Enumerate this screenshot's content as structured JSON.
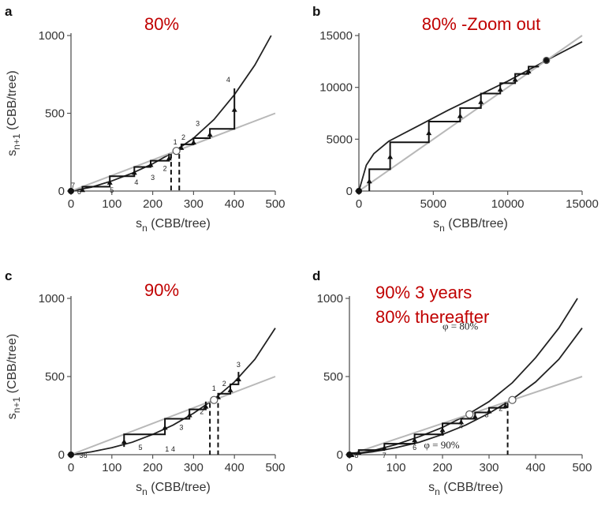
{
  "chart_data": [
    {
      "panel": "a",
      "note_lines": [
        "80%"
      ],
      "type": "line",
      "xlabel": "s_n (CBB/tree)",
      "ylabel": "s_{n+1} (CBB/tree)",
      "xlim": [
        0,
        500
      ],
      "ylim": [
        0,
        1000
      ],
      "xticks": [
        "0",
        "100",
        "200",
        "300",
        "400",
        "500"
      ],
      "yticks": [
        "0",
        "500",
        "1000"
      ],
      "series": [
        {
          "x": [
            0,
            50,
            100,
            150,
            200,
            250,
            300,
            350,
            400,
            450,
            490
          ],
          "values": [
            0,
            25,
            65,
            115,
            175,
            250,
            340,
            460,
            620,
            810,
            1000
          ]
        },
        {
          "x": [
            0,
            500
          ],
          "values": [
            0,
            500
          ]
        }
      ],
      "cobweb": [
        [
          28,
          0
        ],
        [
          28,
          28
        ],
        [
          95,
          28
        ],
        [
          95,
          95
        ],
        [
          155,
          95
        ],
        [
          155,
          155
        ],
        [
          195,
          155
        ],
        [
          195,
          195
        ],
        [
          240,
          195
        ],
        [
          240,
          240
        ]
      ],
      "cobweb_upper": [
        [
          270,
          270
        ],
        [
          270,
          300
        ],
        [
          300,
          300
        ],
        [
          300,
          340
        ],
        [
          340,
          340
        ],
        [
          340,
          400
        ],
        [
          400,
          400
        ],
        [
          400,
          660
        ]
      ],
      "dashed_x": [
        245,
        265
      ],
      "fixed_point": [
        258,
        258
      ],
      "step_labels": [
        {
          "text": "7",
          "x": 5,
          "y": 20
        },
        {
          "text": "6",
          "x": 20,
          "y": -20
        },
        {
          "text": "5",
          "x": 100,
          "y": -10
        },
        {
          "text": "4",
          "x": 160,
          "y": 40
        },
        {
          "text": "3",
          "x": 200,
          "y": 70
        },
        {
          "text": "2",
          "x": 230,
          "y": 130
        },
        {
          "text": "1",
          "x": 255,
          "y": 300
        },
        {
          "text": "2",
          "x": 275,
          "y": 330
        },
        {
          "text": "3",
          "x": 310,
          "y": 420
        },
        {
          "text": "4",
          "x": 385,
          "y": 700
        }
      ]
    },
    {
      "panel": "b",
      "note_lines": [
        "80% -Zoom out"
      ],
      "type": "line",
      "xlabel": "s_n (CBB/tree)",
      "ylabel": "",
      "xlim": [
        0,
        15000
      ],
      "ylim": [
        0,
        15000
      ],
      "xticks": [
        "0",
        "5000",
        "10000",
        "15000"
      ],
      "yticks": [
        "0",
        "5000",
        "10000",
        "15000"
      ],
      "series": [
        {
          "x": [
            0,
            500,
            1000,
            2000,
            4000,
            6000,
            8000,
            10000,
            12600,
            15000
          ],
          "values": [
            0,
            2500,
            3600,
            4800,
            6300,
            7800,
            9200,
            10600,
            12600,
            14400
          ]
        },
        {
          "x": [
            0,
            15000
          ],
          "values": [
            0,
            15000
          ]
        }
      ],
      "cobweb": [
        [
          700,
          0
        ],
        [
          700,
          2100
        ],
        [
          2100,
          2100
        ],
        [
          2100,
          4700
        ],
        [
          4700,
          4700
        ],
        [
          4700,
          6700
        ],
        [
          6800,
          6700
        ],
        [
          6800,
          8000
        ],
        [
          8200,
          8000
        ],
        [
          8200,
          9400
        ],
        [
          9500,
          9400
        ],
        [
          9500,
          10400
        ],
        [
          10500,
          10400
        ],
        [
          10500,
          11300
        ],
        [
          11400,
          11300
        ],
        [
          11400,
          12000
        ],
        [
          12100,
          12000
        ]
      ],
      "fixed_point": [
        12600,
        12600
      ]
    },
    {
      "panel": "c",
      "note_lines": [
        "90%"
      ],
      "type": "line",
      "xlabel": "s_n (CBB/tree)",
      "ylabel": "s_{n+1} (CBB/tree)",
      "xlim": [
        0,
        500
      ],
      "ylim": [
        0,
        1000
      ],
      "xticks": [
        "0",
        "100",
        "200",
        "300",
        "400",
        "500"
      ],
      "yticks": [
        "0",
        "500",
        "1000"
      ],
      "series": [
        {
          "x": [
            0,
            50,
            100,
            150,
            200,
            250,
            300,
            350,
            400,
            450,
            500
          ],
          "values": [
            0,
            18,
            45,
            80,
            130,
            190,
            265,
            355,
            465,
            610,
            810
          ]
        },
        {
          "x": [
            0,
            500
          ],
          "values": [
            0,
            500
          ]
        }
      ],
      "cobweb": [
        [
          130,
          50
        ],
        [
          130,
          130
        ],
        [
          230,
          130
        ],
        [
          230,
          230
        ],
        [
          290,
          230
        ],
        [
          290,
          290
        ],
        [
          330,
          290
        ],
        [
          330,
          340
        ]
      ],
      "cobweb_upper": [
        [
          360,
          360
        ],
        [
          360,
          390
        ],
        [
          390,
          390
        ],
        [
          390,
          450
        ],
        [
          410,
          450
        ],
        [
          410,
          530
        ]
      ],
      "dashed_x": [
        340,
        360
      ],
      "fixed_point": [
        350,
        350
      ],
      "step_labels": [
        {
          "text": "3",
          "x": 25,
          "y": -20
        },
        {
          "text": "6",
          "x": 35,
          "y": -20
        },
        {
          "text": "5",
          "x": 170,
          "y": 30
        },
        {
          "text": "1",
          "x": 235,
          "y": 20
        },
        {
          "text": "4",
          "x": 250,
          "y": 20
        },
        {
          "text": "3",
          "x": 270,
          "y": 160
        },
        {
          "text": "2",
          "x": 320,
          "y": 260
        },
        {
          "text": "1",
          "x": 350,
          "y": 410
        },
        {
          "text": "2",
          "x": 375,
          "y": 440
        },
        {
          "text": "3",
          "x": 410,
          "y": 560
        }
      ]
    },
    {
      "panel": "d",
      "note_lines": [
        "90%  3 years",
        "80% thereafter"
      ],
      "type": "line",
      "xlabel": "s_n (CBB/tree)",
      "ylabel": "",
      "xlim": [
        0,
        500
      ],
      "ylim": [
        0,
        1000
      ],
      "xticks": [
        "0",
        "100",
        "200",
        "300",
        "400",
        "500"
      ],
      "yticks": [
        "0",
        "500",
        "1000"
      ],
      "series": [
        {
          "name": "φ = 80%",
          "x": [
            0,
            50,
            100,
            150,
            200,
            250,
            300,
            350,
            400,
            450,
            490
          ],
          "values": [
            0,
            25,
            65,
            115,
            175,
            250,
            340,
            460,
            620,
            810,
            1000
          ]
        },
        {
          "name": "φ = 90%",
          "x": [
            0,
            50,
            100,
            150,
            200,
            250,
            300,
            350,
            400,
            450,
            500
          ],
          "values": [
            0,
            18,
            45,
            80,
            130,
            190,
            265,
            355,
            465,
            610,
            810
          ]
        },
        {
          "x": [
            0,
            500
          ],
          "values": [
            0,
            500
          ]
        }
      ],
      "cobweb": [
        [
          5,
          0
        ],
        [
          5,
          10
        ],
        [
          20,
          10
        ],
        [
          20,
          30
        ],
        [
          75,
          30
        ],
        [
          75,
          70
        ],
        [
          140,
          70
        ],
        [
          140,
          130
        ],
        [
          200,
          130
        ],
        [
          200,
          200
        ],
        [
          240,
          200
        ],
        [
          240,
          230
        ],
        [
          270,
          230
        ],
        [
          270,
          270
        ],
        [
          300,
          270
        ],
        [
          300,
          300
        ],
        [
          335,
          300
        ],
        [
          335,
          335
        ]
      ],
      "dashed_x": [
        340
      ],
      "fixed_points": [
        [
          258,
          258
        ],
        [
          350,
          350
        ]
      ],
      "step_labels": [
        {
          "text": "8",
          "x": 15,
          "y": -20
        },
        {
          "text": "7",
          "x": 75,
          "y": -20
        },
        {
          "text": "6",
          "x": 140,
          "y": 30
        },
        {
          "text": "5",
          "x": 200,
          "y": 120
        },
        {
          "text": "4",
          "x": 240,
          "y": 170
        },
        {
          "text": "3",
          "x": 295,
          "y": 240
        },
        {
          "text": "2",
          "x": 325,
          "y": 280
        }
      ],
      "curve_labels": [
        "φ = 80%",
        "φ = 90%"
      ]
    }
  ]
}
